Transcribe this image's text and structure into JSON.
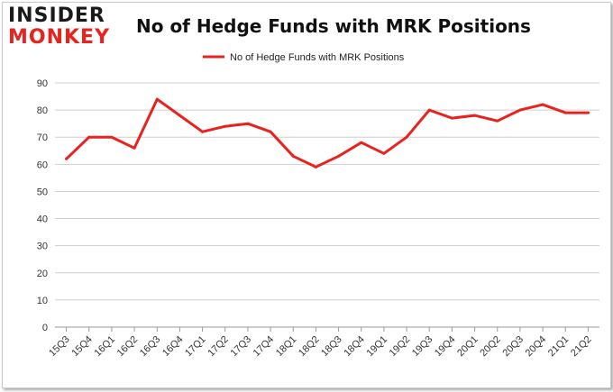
{
  "brand": {
    "line1": "INSIDER",
    "line2": "MONKEY"
  },
  "colors": {
    "series": "#e8231f",
    "grid": "#cfcfcf",
    "axis": "#999999"
  },
  "chart_data": {
    "type": "line",
    "title": "No of Hedge Funds with MRK Positions",
    "xlabel": "",
    "ylabel": "",
    "ylim": [
      0,
      90
    ],
    "yticks": [
      0,
      10,
      20,
      30,
      40,
      50,
      60,
      70,
      80,
      90
    ],
    "grid": true,
    "legend_position": "top-center",
    "categories": [
      "15Q3",
      "15Q4",
      "16Q1",
      "16Q2",
      "16Q3",
      "16Q4",
      "17Q1",
      "17Q2",
      "17Q3",
      "17Q4",
      "18Q1",
      "18Q2",
      "18Q3",
      "18Q4",
      "19Q1",
      "19Q2",
      "19Q3",
      "19Q4",
      "20Q1",
      "20Q2",
      "20Q3",
      "20Q4",
      "21Q1",
      "21Q2"
    ],
    "series": [
      {
        "name": "No of Hedge Funds with MRK Positions",
        "values": [
          62,
          70,
          70,
          66,
          84,
          78,
          72,
          74,
          75,
          72,
          63,
          59,
          63,
          68,
          64,
          70,
          80,
          77,
          78,
          76,
          80,
          82,
          79,
          79
        ]
      }
    ]
  }
}
